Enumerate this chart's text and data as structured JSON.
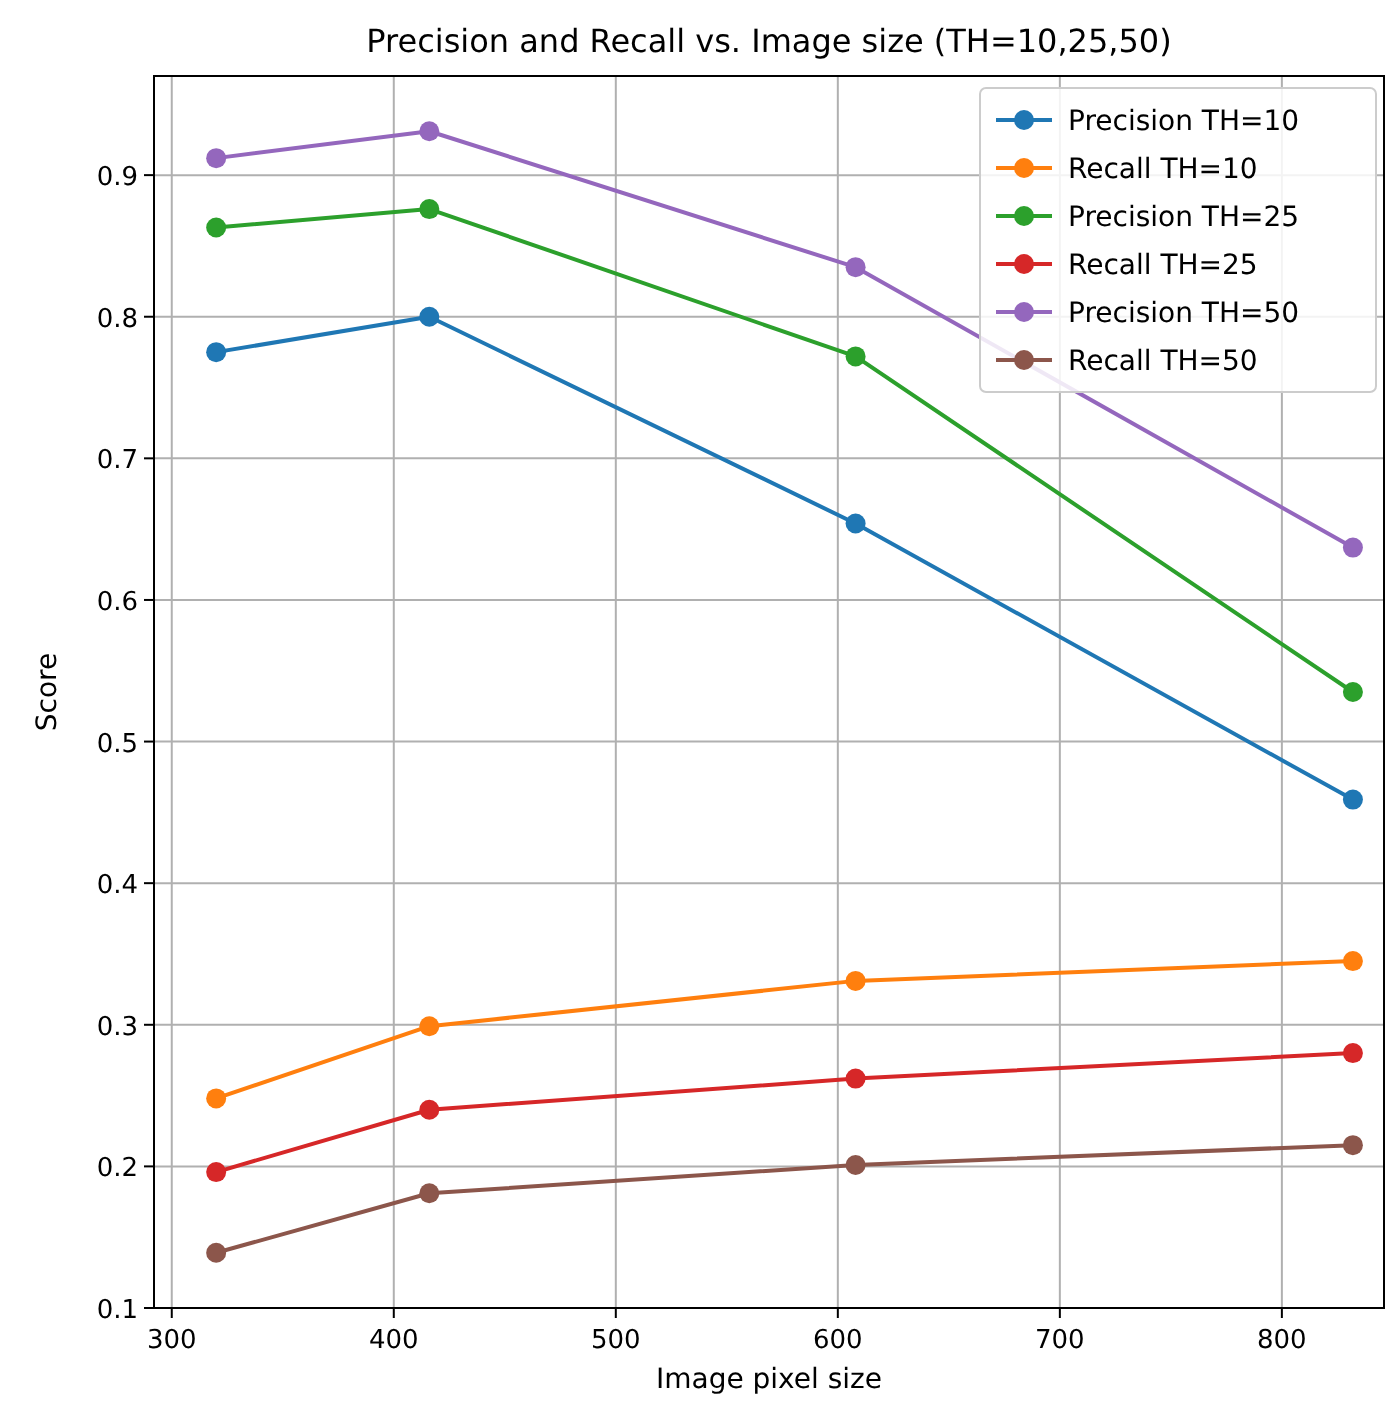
{
  "chart_data": {
    "type": "line",
    "title": "Precision and Recall vs. Image size (TH=10,25,50)",
    "xlabel": "Image pixel size",
    "ylabel": "Score",
    "x": [
      320,
      416,
      608,
      832
    ],
    "xlim": [
      292,
      846
    ],
    "xticks": [
      300,
      400,
      500,
      600,
      700,
      800
    ],
    "ylim": [
      0.1,
      0.97
    ],
    "yticks": [
      {
        "value": 0.1,
        "label": "0.1"
      },
      {
        "value": 0.2,
        "label": "0.2"
      },
      {
        "value": 0.3,
        "label": "0.3"
      },
      {
        "value": 0.4,
        "label": "0.4"
      },
      {
        "value": 0.5,
        "label": "0.5"
      },
      {
        "value": 0.6,
        "label": "0.6"
      },
      {
        "value": 0.7,
        "label": "0.7"
      },
      {
        "value": 0.8,
        "label": "0.8"
      },
      {
        "value": 0.9,
        "label": "0.9"
      }
    ],
    "grid": true,
    "legend": "top right",
    "marker": "circle",
    "line_style": "solid",
    "series": [
      {
        "name": "Precision TH=10",
        "color": "#1f77b4",
        "values": [
          0.775,
          0.8,
          0.654,
          0.459
        ]
      },
      {
        "name": "Recall TH=10",
        "color": "#ff7f0e",
        "values": [
          0.248,
          0.299,
          0.331,
          0.345
        ]
      },
      {
        "name": "Precision TH=25",
        "color": "#2ca02c",
        "values": [
          0.863,
          0.876,
          0.772,
          0.535
        ]
      },
      {
        "name": "Recall TH=25",
        "color": "#d62728",
        "values": [
          0.196,
          0.24,
          0.262,
          0.28
        ]
      },
      {
        "name": "Precision TH=50",
        "color": "#9467bd",
        "values": [
          0.912,
          0.931,
          0.835,
          0.637
        ]
      },
      {
        "name": "Recall TH=50",
        "color": "#8c564b",
        "values": [
          0.139,
          0.181,
          0.201,
          0.215
        ]
      }
    ]
  }
}
